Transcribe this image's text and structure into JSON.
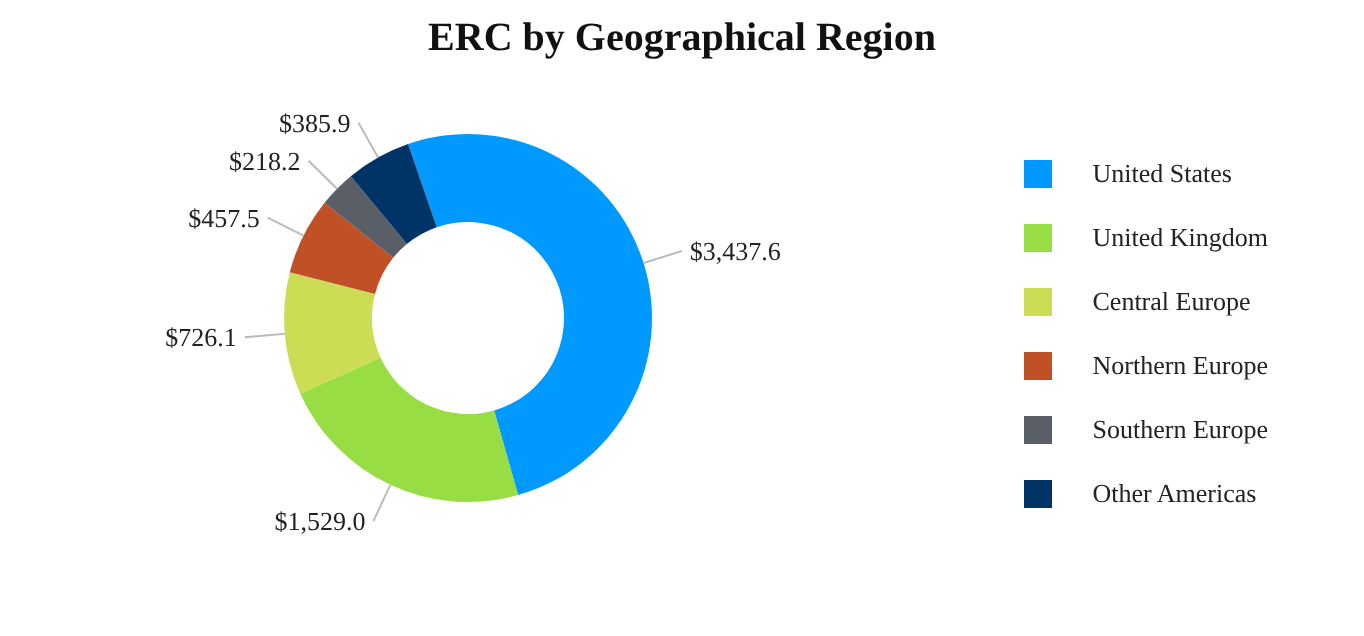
{
  "chart_data": {
    "type": "donut",
    "title": "ERC by Geographical Region",
    "categories": [
      "United States",
      "United Kingdom",
      "Central Europe",
      "Northern Europe",
      "Southern Europe",
      "Other Americas"
    ],
    "values": [
      3437.6,
      1529.0,
      726.1,
      457.5,
      218.2,
      385.9
    ],
    "value_labels": [
      "$3,437.6",
      "$1,529.0",
      "$726.1",
      "$457.5",
      "$218.2",
      "$385.9"
    ],
    "colors": [
      "#0099ff",
      "#99dd44",
      "#ccdd55",
      "#c05025",
      "#5a5e66",
      "#003366"
    ],
    "legend": "right"
  }
}
